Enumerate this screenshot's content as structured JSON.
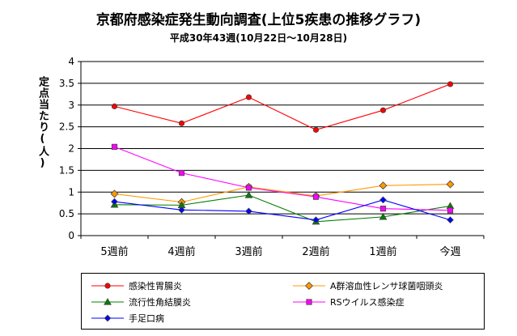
{
  "chart_data": {
    "type": "line",
    "title": "京都府感染症発生動向調査(上位5疾患の推移グラフ)",
    "subtitle": "平成30年43週(10月22日〜10月28日)",
    "ylabel": "定点当たり(人)",
    "xlabel": "",
    "categories": [
      "5週前",
      "4週前",
      "3週前",
      "2週前",
      "1週前",
      "今週"
    ],
    "ylim": [
      0,
      4
    ],
    "yticks": [
      "0",
      "0.5",
      "1",
      "1.5",
      "2",
      "2.5",
      "3",
      "3.5",
      "4"
    ],
    "grid": true,
    "legend_position": "bottom",
    "series": [
      {
        "name": "感染性胃腸炎",
        "values": [
          2.97,
          2.58,
          3.18,
          2.43,
          2.88,
          3.48
        ],
        "color": "#ff0000",
        "marker": "circle"
      },
      {
        "name": "A群溶血性レンサ球菌咽頭炎",
        "values": [
          0.96,
          0.77,
          1.12,
          0.91,
          1.15,
          1.18
        ],
        "color": "#ff9900",
        "marker": "diamond"
      },
      {
        "name": "流行性角結膜炎",
        "values": [
          0.71,
          0.7,
          0.93,
          0.32,
          0.43,
          0.68
        ],
        "color": "#008000",
        "marker": "triangle"
      },
      {
        "name": "RSウイルス感染症",
        "values": [
          2.04,
          1.44,
          1.1,
          0.89,
          0.62,
          0.58
        ],
        "color": "#ff00ff",
        "marker": "square"
      },
      {
        "name": "手足口病",
        "values": [
          0.78,
          0.59,
          0.56,
          0.36,
          0.82,
          0.36
        ],
        "color": "#0000ff",
        "marker": "diamond-small"
      }
    ]
  }
}
